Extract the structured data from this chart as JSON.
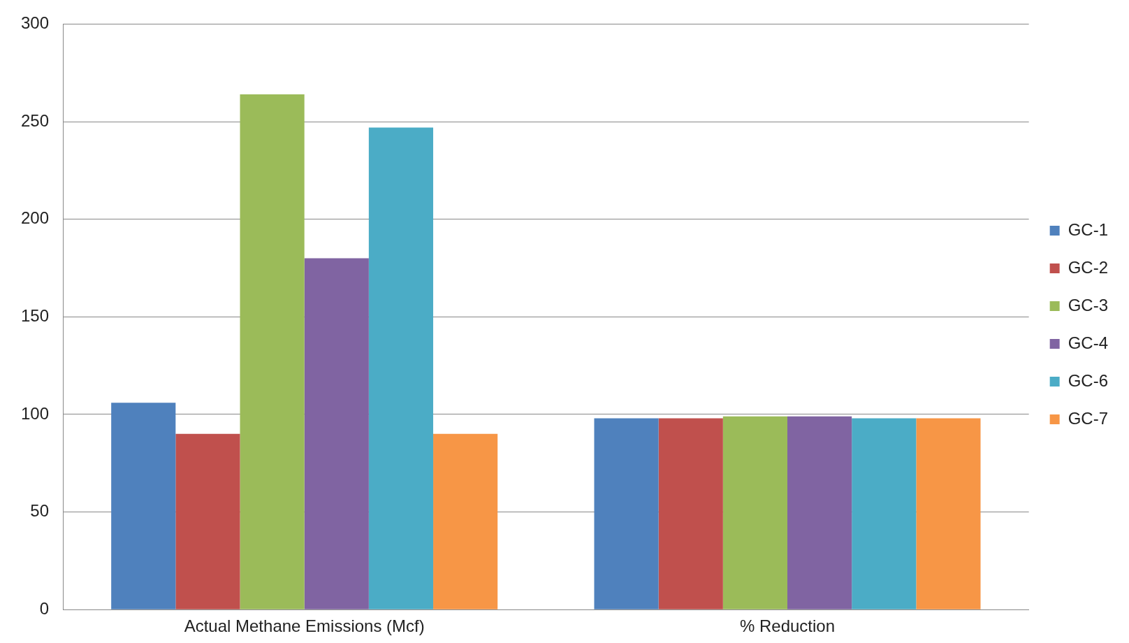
{
  "chart_data": {
    "type": "bar",
    "categories": [
      "Actual Methane Emissions (Mcf)",
      "% Reduction"
    ],
    "series": [
      {
        "name": "GC-1",
        "color": "#4f81bd",
        "values": [
          106,
          98
        ]
      },
      {
        "name": "GC-2",
        "color": "#c0504d",
        "values": [
          90,
          98
        ]
      },
      {
        "name": "GC-3",
        "color": "#9bbb59",
        "values": [
          264,
          99
        ]
      },
      {
        "name": "GC-4",
        "color": "#8064a2",
        "values": [
          180,
          99
        ]
      },
      {
        "name": "GC-6",
        "color": "#4bacc6",
        "values": [
          247,
          98
        ]
      },
      {
        "name": "GC-7",
        "color": "#f79646",
        "values": [
          90,
          98
        ]
      }
    ],
    "ylim": [
      0,
      300
    ],
    "yticks": [
      0,
      50,
      100,
      150,
      200,
      250,
      300
    ],
    "grid": "y",
    "legend": "right"
  }
}
